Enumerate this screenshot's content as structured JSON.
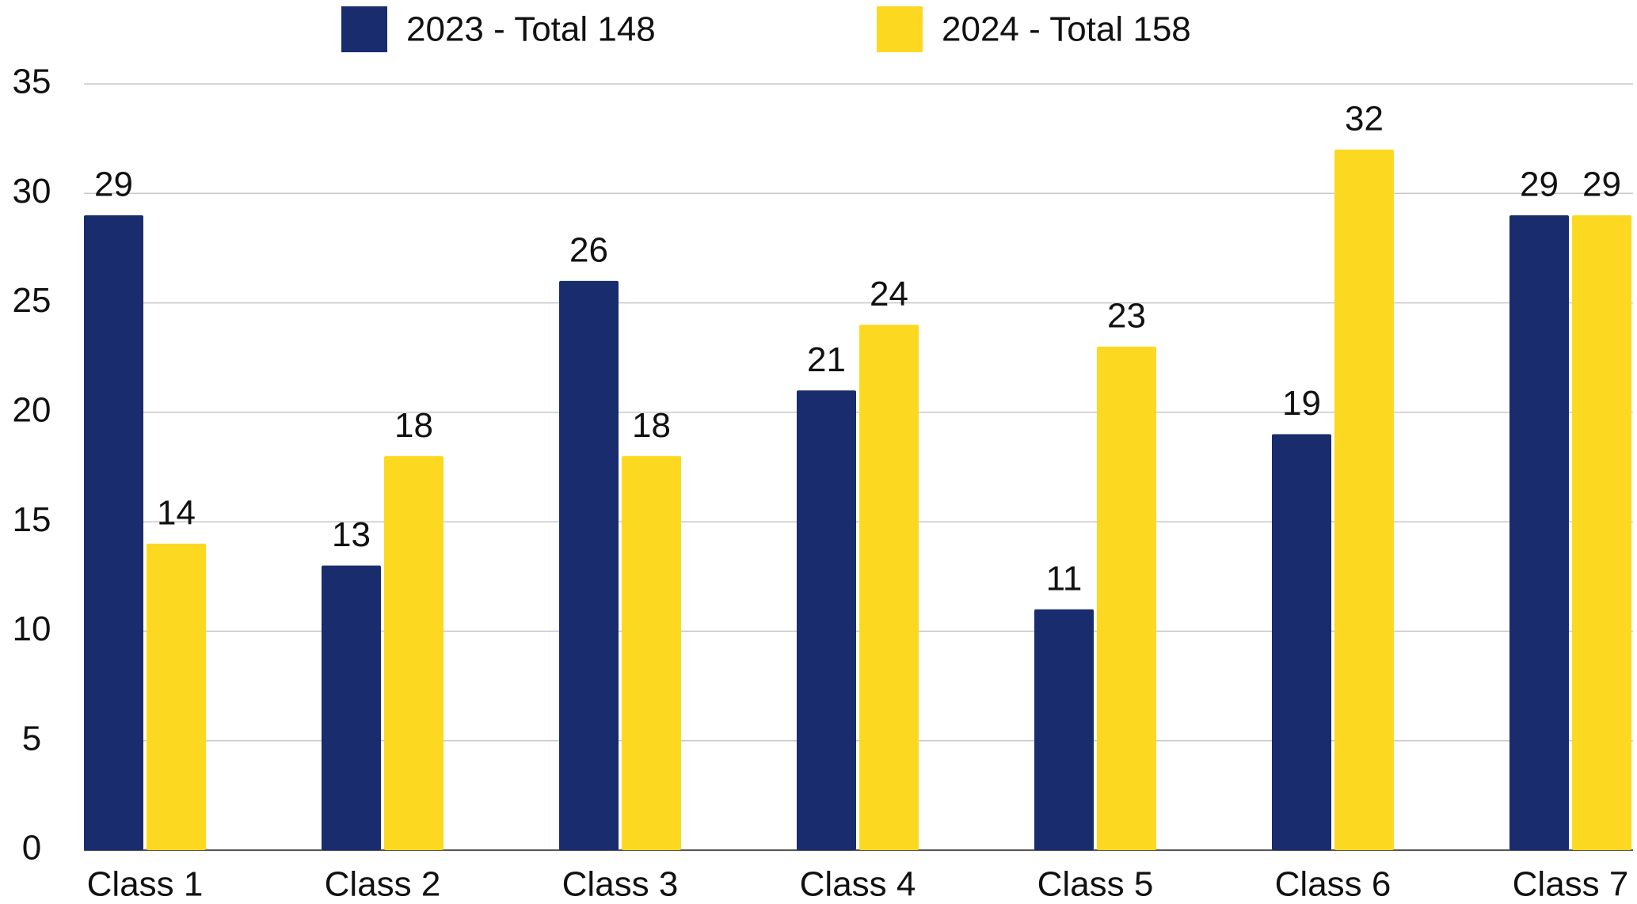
{
  "chart_data": {
    "type": "bar",
    "categories": [
      "Class 1",
      "Class 2",
      "Class 3",
      "Class 4",
      "Class 5",
      "Class 6",
      "Class 7"
    ],
    "series": [
      {
        "name": "2023 - Total 148",
        "color": "#182c6e",
        "values": [
          29,
          13,
          26,
          21,
          11,
          19,
          29
        ]
      },
      {
        "name": "2024 - Total 158",
        "color": "#fcd920",
        "values": [
          14,
          18,
          18,
          24,
          23,
          32,
          29
        ]
      }
    ],
    "ylim": [
      0,
      35
    ],
    "yticks": [
      0,
      5,
      10,
      15,
      20,
      25,
      30,
      35
    ],
    "grid": true,
    "legend": "top"
  }
}
